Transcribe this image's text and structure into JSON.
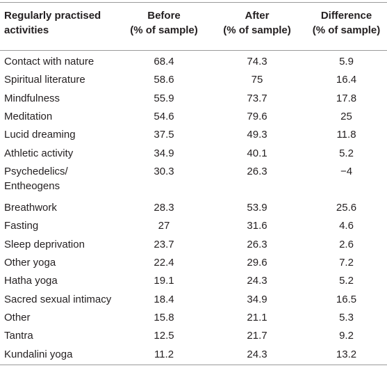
{
  "table": {
    "headers": [
      "Regularly practised\nactivities",
      "Before\n(% of sample)",
      "After\n(% of sample)",
      "Difference\n(% of sample)"
    ],
    "rows": [
      [
        "Contact with nature",
        "68.4",
        "74.3",
        "5.9"
      ],
      [
        "Spiritual literature",
        "58.6",
        "75",
        "16.4"
      ],
      [
        "Mindfulness",
        "55.9",
        "73.7",
        "17.8"
      ],
      [
        "Meditation",
        "54.6",
        "79.6",
        "25"
      ],
      [
        "Lucid dreaming",
        "37.5",
        "49.3",
        "11.8"
      ],
      [
        "Athletic activity",
        "34.9",
        "40.1",
        "5.2"
      ],
      [
        "Psychedelics/\nEntheogens",
        "30.3",
        "26.3",
        "−4"
      ],
      [
        "Breathwork",
        "28.3",
        "53.9",
        "25.6"
      ],
      [
        "Fasting",
        "27",
        "31.6",
        "4.6"
      ],
      [
        "Sleep deprivation",
        "23.7",
        "26.3",
        "2.6"
      ],
      [
        "Other yoga",
        "22.4",
        "29.6",
        "7.2"
      ],
      [
        "Hatha yoga",
        "19.1",
        "24.3",
        "5.2"
      ],
      [
        "Sacred sexual intimacy",
        "18.4",
        "34.9",
        "16.5"
      ],
      [
        "Other",
        "15.8",
        "21.1",
        "5.3"
      ],
      [
        "Tantra",
        "12.5",
        "21.7",
        "9.2"
      ],
      [
        "Kundalini yoga",
        "11.2",
        "24.3",
        "13.2"
      ]
    ]
  }
}
